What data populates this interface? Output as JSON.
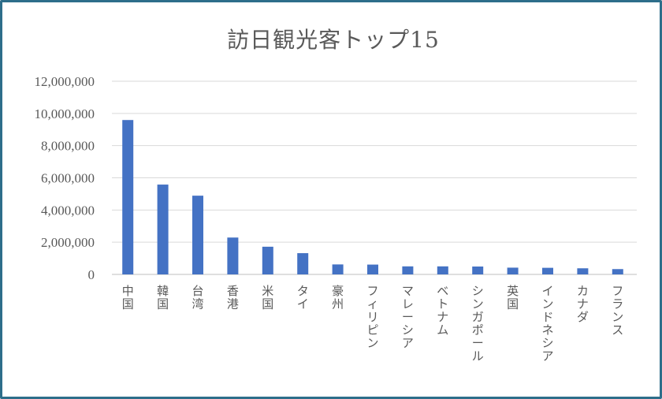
{
  "chart_data": {
    "type": "bar",
    "title": "訪日観光客トップ15",
    "xlabel": "",
    "ylabel": "",
    "ylim": [
      0,
      12000000
    ],
    "yticks": [
      0,
      2000000,
      4000000,
      6000000,
      8000000,
      10000000,
      12000000
    ],
    "ytick_labels": [
      "0",
      "2,000,000",
      "4,000,000",
      "6,000,000",
      "8,000,000",
      "10,000,000",
      "12,000,000"
    ],
    "grid": true,
    "bar_color": "#4472c4",
    "categories": [
      "中国",
      "韓国",
      "台湾",
      "香港",
      "米国",
      "タイ",
      "豪州",
      "フィリピン",
      "マレーシア",
      "ベトナム",
      "シンガポール",
      "英国",
      "インドネシア",
      "カナダ",
      "フランス"
    ],
    "values": [
      9590000,
      5580000,
      4890000,
      2290000,
      1720000,
      1320000,
      620000,
      610000,
      500000,
      500000,
      490000,
      420000,
      410000,
      380000,
      330000
    ]
  }
}
